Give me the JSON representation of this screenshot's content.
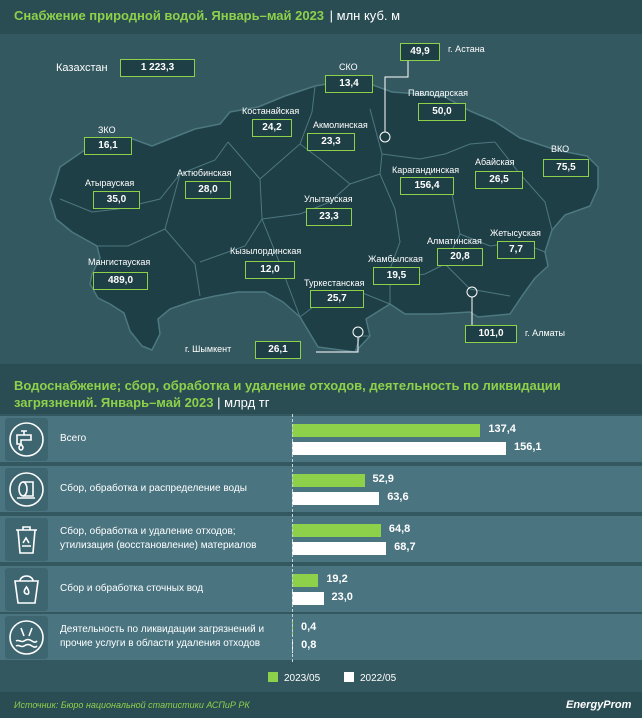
{
  "title": "Снабжение природной водой. Январь–май 2023",
  "title_unit": "| млн куб. м",
  "kazakhstan": {
    "label": "Казахстан",
    "value": "1 223,3"
  },
  "regions": [
    {
      "id": "astana",
      "label": "г. Астана",
      "value": "49,9"
    },
    {
      "id": "sko",
      "label": "СКО",
      "value": "13,4"
    },
    {
      "id": "pavlodar",
      "label": "Павлодарская",
      "value": "50,0"
    },
    {
      "id": "kostanay",
      "label": "Костанайская",
      "value": "24,2"
    },
    {
      "id": "akmola",
      "label": "Акмолинская",
      "value": "23,3"
    },
    {
      "id": "zko",
      "label": "ЗКО",
      "value": "16,1"
    },
    {
      "id": "aktobe",
      "label": "Актюбинская",
      "value": "28,0"
    },
    {
      "id": "karaganda",
      "label": "Карагандинская",
      "value": "156,4"
    },
    {
      "id": "abay",
      "label": "Абайская",
      "value": "26,5"
    },
    {
      "id": "vko",
      "label": "ВКО",
      "value": "75,5"
    },
    {
      "id": "atyrau",
      "label": "Атырауская",
      "value": "35,0"
    },
    {
      "id": "ulytau",
      "label": "Улытауская",
      "value": "23,3"
    },
    {
      "id": "mangistau",
      "label": "Мангистауская",
      "value": "489,0"
    },
    {
      "id": "kyzylorda",
      "label": "Кызылординская",
      "value": "12,0"
    },
    {
      "id": "almaty_reg",
      "label": "Алматинская",
      "value": "20,8"
    },
    {
      "id": "zhetisu",
      "label": "Жетысуская",
      "value": "7,7"
    },
    {
      "id": "zhambyl",
      "label": "Жамбылская",
      "value": "19,5"
    },
    {
      "id": "turkestan",
      "label": "Туркестанская",
      "value": "25,7"
    },
    {
      "id": "almaty_city",
      "label": "г. Алматы",
      "value": "101,0"
    },
    {
      "id": "shymkent",
      "label": "г. Шымкент",
      "value": "26,1"
    }
  ],
  "section2": {
    "title": "Водоснабжение; сбор, обработка и удаление отходов, деятельность по ликвидации загрязнений. Январь–май 2023",
    "unit": "| млрд тг"
  },
  "chart_data": {
    "type": "bar",
    "orientation": "horizontal",
    "categories": [
      "Всего",
      "Сбор, обработка и распределение воды",
      "Сбор, обработка и удаление отходов; утилизация (восстановление) материалов",
      "Сбор и обработка сточных вод",
      "Деятельность по ликвидации загрязнений и прочие услуги в области удаления отходов"
    ],
    "category_lines": [
      [
        "Всего"
      ],
      [
        "Сбор, обработка и распределение воды"
      ],
      [
        "Сбор, обработка и удаление отходов;",
        "утилизация (восстановление) материалов"
      ],
      [
        "Сбор и обработка сточных вод"
      ],
      [
        "Деятельность по ликвидации загрязнений и",
        "прочие услуги в области удаления отходов"
      ]
    ],
    "series": [
      {
        "name": "2023/05",
        "values": [
          137.4,
          52.9,
          64.8,
          19.2,
          0.4
        ],
        "labels": [
          "137,4",
          "52,9",
          "64,8",
          "19,2",
          "0,4"
        ],
        "color": "#8dd14a"
      },
      {
        "name": "2022/05",
        "values": [
          156.1,
          63.6,
          68.7,
          23.0,
          0.8
        ],
        "labels": [
          "156,1",
          "63,6",
          "68,7",
          "23,0",
          "0,8"
        ],
        "color": "#ffffff"
      }
    ],
    "icons": [
      "water-tap-icon",
      "water-pipe-icon",
      "recycle-bin-icon",
      "sewage-bucket-icon",
      "pollution-cleanup-icon"
    ],
    "xlim": [
      0,
      156.1
    ]
  },
  "source": "Источник: Бюро национальной статистики АСПиР РК",
  "brand": "EnergyProm",
  "colors": {
    "accent": "#8dd14a",
    "map_fill": "#1f3f46",
    "background": "#33585f",
    "row": "#4a7480"
  }
}
